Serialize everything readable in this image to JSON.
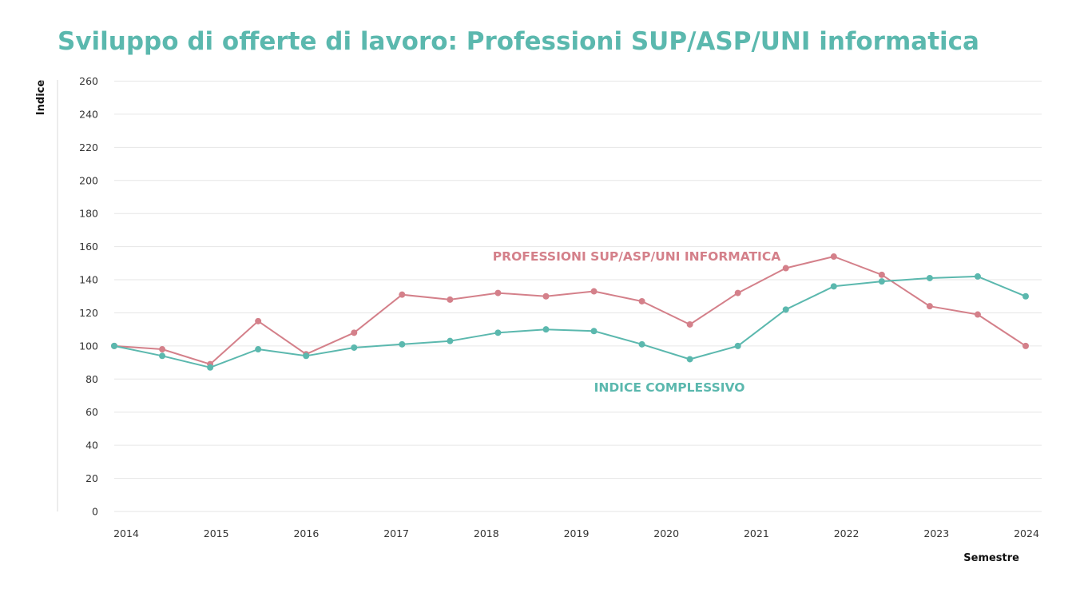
{
  "title": "Sviluppo di offerte di lavoro: Professioni SUP/ASP/UNI informatica",
  "chart_data": {
    "type": "line",
    "title": "Sviluppo di offerte di lavoro: Professioni SUP/ASP/UNI informatica",
    "xlabel": "Semestre",
    "ylabel": "Indice",
    "ylim": [
      0,
      260
    ],
    "yticks": [
      0,
      20,
      40,
      60,
      80,
      100,
      120,
      140,
      160,
      180,
      200,
      220,
      240,
      260
    ],
    "xticks": [
      "2014",
      "2015",
      "2016",
      "2017",
      "2018",
      "2019",
      "2020",
      "2021",
      "2022",
      "2023",
      "2024"
    ],
    "grid": true,
    "legend": "inline labels",
    "x": [
      "2014-S1",
      "2014-S2",
      "2015-S1",
      "2015-S2",
      "2016-S1",
      "2016-S2",
      "2017-S1",
      "2017-S2",
      "2018-S1",
      "2018-S2",
      "2019-S1",
      "2019-S2",
      "2020-S1",
      "2020-S2",
      "2021-S1",
      "2021-S2",
      "2022-S1",
      "2022-S2",
      "2023-S1",
      "2023-S2"
    ],
    "series": [
      {
        "name": "PROFESSIONI SUP/ASP/UNI INFORMATICA",
        "color": "#d4808a",
        "values": [
          100,
          98,
          89,
          115,
          95,
          108,
          131,
          128,
          132,
          130,
          133,
          127,
          113,
          132,
          147,
          154,
          143,
          124,
          119,
          100
        ]
      },
      {
        "name": "INDICE COMPLESSIVO",
        "color": "#5bb8ae",
        "values": [
          100,
          94,
          87,
          98,
          94,
          99,
          101,
          103,
          108,
          110,
          109,
          101,
          92,
          100,
          122,
          136,
          139,
          141,
          142,
          130
        ]
      }
    ]
  }
}
